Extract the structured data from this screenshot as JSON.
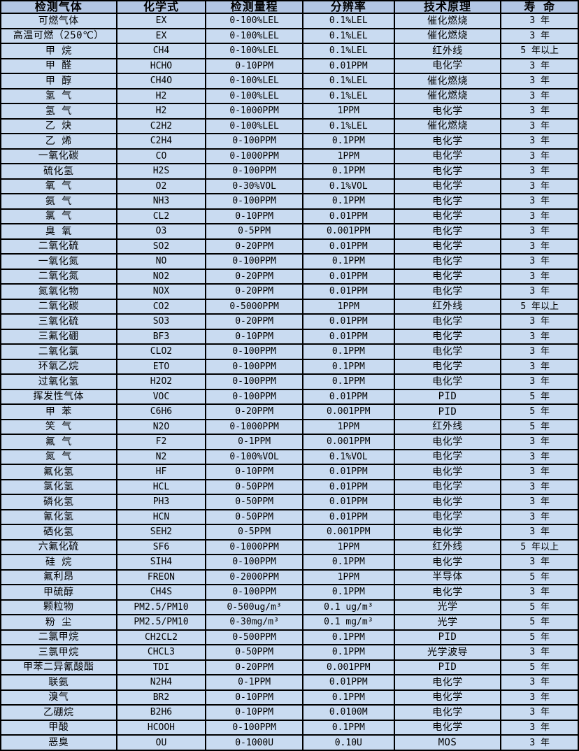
{
  "colors": {
    "header_bg": "#b2c6e4",
    "row_bg": "#c9dbf1",
    "border": "#000000",
    "text": "#000000"
  },
  "table": {
    "headers": [
      "检测气体",
      "化学式",
      "检测量程",
      "分辨率",
      "技术原理",
      "寿 命"
    ],
    "chinese_columns": [
      0,
      4
    ],
    "rows": [
      [
        "可燃气体",
        "EX",
        "0-100%LEL",
        "0.1%LEL",
        "催化燃烧",
        "3 年"
      ],
      [
        "高温可燃（250℃）",
        "EX",
        "0-100%LEL",
        "0.1%LEL",
        "催化燃烧",
        "3 年"
      ],
      [
        "甲 烷",
        "CH4",
        "0-100%LEL",
        "0.1%LEL",
        "红外线",
        "5 年以上"
      ],
      [
        "甲 醛",
        "HCHO",
        "0-10PPM",
        "0.01PPM",
        "电化学",
        "3 年"
      ],
      [
        "甲 醇",
        "CH4O",
        "0-100%LEL",
        "0.1%LEL",
        "催化燃烧",
        "3 年"
      ],
      [
        "氢 气",
        "H2",
        "0-100%LEL",
        "0.1%LEL",
        "催化燃烧",
        "3 年"
      ],
      [
        "氢 气",
        "H2",
        "0-1000PPM",
        "1PPM",
        "电化学",
        "3 年"
      ],
      [
        "乙 炔",
        "C2H2",
        "0-100%LEL",
        "0.1%LEL",
        "催化燃烧",
        "3 年"
      ],
      [
        "乙 烯",
        "C2H4",
        "0-100PPM",
        "0.1PPM",
        "电化学",
        "3 年"
      ],
      [
        "一氧化碳",
        "CO",
        "0-1000PPM",
        "1PPM",
        "电化学",
        "3 年"
      ],
      [
        "硫化氢",
        "H2S",
        "0-100PPM",
        "0.1PPM",
        "电化学",
        "3 年"
      ],
      [
        "氧 气",
        "O2",
        "0-30%VOL",
        "0.1%VOL",
        "电化学",
        "3 年"
      ],
      [
        "氨 气",
        "NH3",
        "0-100PPM",
        "0.1PPM",
        "电化学",
        "3 年"
      ],
      [
        "氯 气",
        "CL2",
        "0-10PPM",
        "0.01PPM",
        "电化学",
        "3 年"
      ],
      [
        "臭 氧",
        "O3",
        "0-5PPM",
        "0.001PPM",
        "电化学",
        "3 年"
      ],
      [
        "二氧化硫",
        "SO2",
        "0-20PPM",
        "0.01PPM",
        "电化学",
        "3 年"
      ],
      [
        "一氧化氮",
        "NO",
        "0-100PPM",
        "0.1PPM",
        "电化学",
        "3 年"
      ],
      [
        "二氧化氮",
        "NO2",
        "0-20PPM",
        "0.01PPM",
        "电化学",
        "3 年"
      ],
      [
        "氮氧化物",
        "NOX",
        "0-20PPM",
        "0.01PPM",
        "电化学",
        "3 年"
      ],
      [
        "二氧化碳",
        "CO2",
        "0-5000PPM",
        "1PPM",
        "红外线",
        "5 年以上"
      ],
      [
        "三氧化硫",
        "SO3",
        "0-20PPM",
        "0.01PPM",
        "电化学",
        "3 年"
      ],
      [
        "三氟化硼",
        "BF3",
        "0-10PPM",
        "0.01PPM",
        "电化学",
        "3 年"
      ],
      [
        "二氧化氯",
        "CLO2",
        "0-100PPM",
        "0.1PPM",
        "电化学",
        "3 年"
      ],
      [
        "环氧乙烷",
        "ETO",
        "0-100PPM",
        "0.1PPM",
        "电化学",
        "3 年"
      ],
      [
        "过氧化氢",
        "H2O2",
        "0-100PPM",
        "0.1PPM",
        "电化学",
        "3 年"
      ],
      [
        "挥发性气体",
        "VOC",
        "0-100PPM",
        "0.01PPM",
        "PID",
        "5 年"
      ],
      [
        "甲 苯",
        "C6H6",
        "0-20PPM",
        "0.001PPM",
        "PID",
        "5 年"
      ],
      [
        "笑 气",
        "N2O",
        "0-1000PPM",
        "1PPM",
        "红外线",
        "5 年"
      ],
      [
        "氟 气",
        "F2",
        "0-1PPM",
        "0.001PPM",
        "电化学",
        "3 年"
      ],
      [
        "氮 气",
        "N2",
        "0-100%VOL",
        "0.1%VOL",
        "电化学",
        "3 年"
      ],
      [
        "氟化氢",
        "HF",
        "0-10PPM",
        "0.01PPM",
        "电化学",
        "3 年"
      ],
      [
        "氯化氢",
        "HCL",
        "0-50PPM",
        "0.01PPM",
        "电化学",
        "3 年"
      ],
      [
        "磷化氢",
        "PH3",
        "0-50PPM",
        "0.01PPM",
        "电化学",
        "3 年"
      ],
      [
        "氰化氢",
        "HCN",
        "0-50PPM",
        "0.01PPM",
        "电化学",
        "3 年"
      ],
      [
        "硒化氢",
        "SEH2",
        "0-5PPM",
        "0.001PPM",
        "电化学",
        "3 年"
      ],
      [
        "六氟化硫",
        "SF6",
        "0-1000PPM",
        "1PPM",
        "红外线",
        "5 年以上"
      ],
      [
        "硅 烷",
        "SIH4",
        "0-100PPM",
        "0.1PPM",
        "电化学",
        "3 年"
      ],
      [
        "氟利昂",
        "FREON",
        "0-2000PPM",
        "1PPM",
        "半导体",
        "5 年"
      ],
      [
        "甲硫醇",
        "CH4S",
        "0-100PPM",
        "0.1PPM",
        "电化学",
        "3 年"
      ],
      [
        "颗粒物",
        "PM2.5/PM10",
        "0-500ug/m³",
        "0.1 ug/m³",
        "光学",
        "5 年"
      ],
      [
        "粉 尘",
        "PM2.5/PM10",
        "0-30mg/m³",
        "0.1 mg/m³",
        "光学",
        "5 年"
      ],
      [
        "二氯甲烷",
        "CH2CL2",
        "0-500PPM",
        "0.1PPM",
        "PID",
        "5 年"
      ],
      [
        "三氯甲烷",
        "CHCL3",
        "0-50PPM",
        "0.1PPM",
        "光学波导",
        "3 年"
      ],
      [
        "甲苯二异氰酸酯",
        "TDI",
        "0-20PPM",
        "0.001PPM",
        "PID",
        "5 年"
      ],
      [
        "联氨",
        "N2H4",
        "0-1PPM",
        "0.01PPM",
        "电化学",
        "3 年"
      ],
      [
        "溴气",
        "BR2",
        "0-10PPM",
        "0.1PPM",
        "电化学",
        "3 年"
      ],
      [
        "乙硼烷",
        "B2H6",
        "0-10PPM",
        "0.0100M",
        "电化学",
        "3 年"
      ],
      [
        "甲酸",
        "HCOOH",
        "0-100PPM",
        "0.1PPM",
        "电化学",
        "3 年"
      ],
      [
        "恶臭",
        "OU",
        "0-1000U",
        "0.10U",
        "MOS",
        "3 年"
      ]
    ]
  }
}
